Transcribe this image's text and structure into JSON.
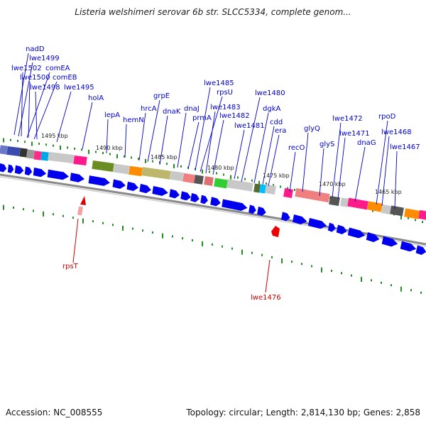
{
  "title": "Listeria welshimeri serovar 6b str. SLCC5334, complete genom...",
  "footer": {
    "accession": "Accession: NC_008555",
    "summary": "Topology: circular; Length: 2,814,130 bp; Genes: 2,858"
  },
  "colors": {
    "label_blue": "#0000cc",
    "label_red": "#cc0000",
    "arrow_blue": "#0000ee",
    "tick_green": "#228b22",
    "backbone": "#888888"
  },
  "scale_labels": [
    "1495 kbp",
    "1490 kbp",
    "1485 kbp",
    "1480 kbp",
    "1475 kbp",
    "1470 kbp",
    "1465 kbp"
  ],
  "gene_labels_top": [
    "nadD",
    "lwe1499",
    "lwe1502",
    "comEA",
    "lwe1500",
    "comEB",
    "lwe1498",
    "lwe1495",
    "holA",
    "lepA",
    "hemN",
    "hrcA",
    "grpE",
    "dnaK",
    "dnaJ",
    "prmA",
    "lwe1485",
    "rpsU",
    "lwe1483",
    "lwe1482",
    "lwe1481",
    "lwe1480",
    "dgkA",
    "cdd",
    "era",
    "recO",
    "glyQ",
    "glyS",
    "lwe1472",
    "lwe1471",
    "dnaG",
    "rpoD",
    "lwe1468",
    "lwe1467"
  ],
  "gene_labels_bottom": [
    "rpsT",
    "lwe1476"
  ],
  "icons": {
    "marker_up": "red-triangle-marker",
    "marker_down": "red-pentagon-marker"
  }
}
